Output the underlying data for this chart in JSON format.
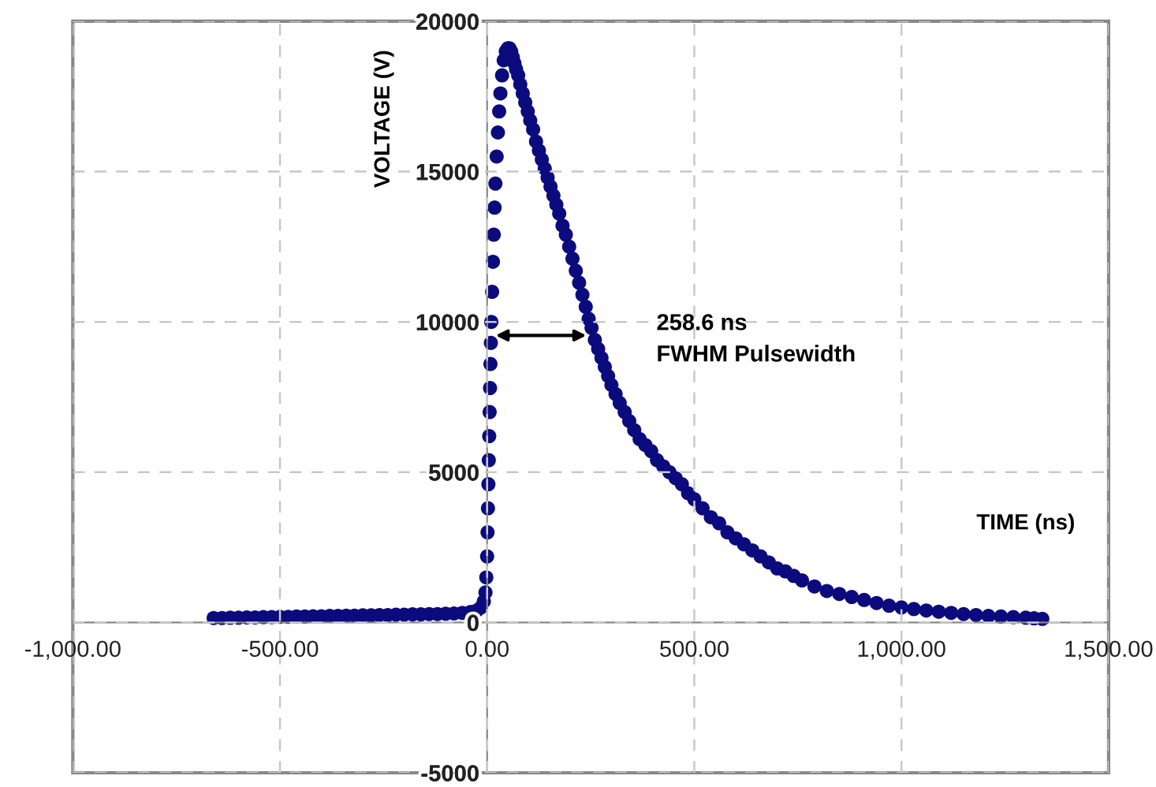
{
  "chart_data": {
    "type": "scatter",
    "xlabel": "TIME (ns)",
    "ylabel": "VOLTAGE (V)",
    "xlim": [
      -1000,
      1500
    ],
    "xticks": [
      {
        "value": -1000,
        "label": "-1,000.00"
      },
      {
        "value": -500,
        "label": "-500.00"
      },
      {
        "value": 0,
        "label": "0.00"
      },
      {
        "value": 500,
        "label": "500.00"
      },
      {
        "value": 1000,
        "label": "1,000.00"
      },
      {
        "value": 1500,
        "label": "1,500.00"
      }
    ],
    "ylim": [
      -5000,
      20000
    ],
    "yticks": [
      -5000,
      0,
      5000,
      10000,
      15000,
      20000
    ],
    "grid": true,
    "marker": "circle",
    "series": [
      {
        "color": "#0b0b7e",
        "x": [
          -660,
          -640,
          -620,
          -600,
          -580,
          -560,
          -540,
          -520,
          -500,
          -480,
          -460,
          -440,
          -420,
          -400,
          -380,
          -360,
          -340,
          -320,
          -300,
          -280,
          -260,
          -240,
          -220,
          -200,
          -180,
          -160,
          -140,
          -120,
          -100,
          -80,
          -60,
          -40,
          -25,
          -15,
          -8,
          -4,
          -2,
          0,
          1,
          2,
          3,
          4,
          5,
          6,
          7,
          8,
          9,
          10,
          12,
          14,
          16,
          18,
          20,
          23,
          26,
          29,
          32,
          36,
          40,
          45,
          50,
          54,
          58,
          62,
          66,
          70,
          75,
          80,
          86,
          92,
          98,
          104,
          111,
          118,
          125,
          132,
          139,
          146,
          153,
          160,
          167,
          174,
          182,
          190,
          198,
          206,
          214,
          222,
          230,
          238,
          245,
          252,
          260,
          268,
          276,
          284,
          292,
          300,
          310,
          320,
          332,
          343,
          355,
          368,
          382,
          396,
          410,
          425,
          440,
          455,
          470,
          485,
          500,
          520,
          540,
          560,
          580,
          600,
          620,
          640,
          660,
          680,
          700,
          720,
          740,
          760,
          790,
          820,
          850,
          880,
          910,
          940,
          970,
          1000,
          1030,
          1060,
          1090,
          1120,
          1150,
          1180,
          1210,
          1240,
          1270,
          1300,
          1320,
          1340
        ],
        "values": [
          150,
          150,
          160,
          160,
          170,
          170,
          180,
          180,
          190,
          190,
          200,
          200,
          210,
          210,
          220,
          220,
          230,
          230,
          240,
          240,
          250,
          250,
          260,
          260,
          270,
          270,
          280,
          280,
          290,
          300,
          320,
          350,
          400,
          500,
          700,
          1000,
          1500,
          2200,
          3000,
          3800,
          4600,
          5400,
          6200,
          7000,
          7800,
          8600,
          9300,
          10000,
          11000,
          12000,
          12900,
          13800,
          14600,
          15500,
          16300,
          17000,
          17600,
          18200,
          18700,
          19000,
          19100,
          19100,
          19000,
          18800,
          18600,
          18400,
          18200,
          17900,
          17600,
          17300,
          17000,
          16700,
          16400,
          16000,
          15700,
          15400,
          15100,
          14800,
          14500,
          14200,
          13900,
          13600,
          13200,
          12900,
          12500,
          12100,
          11700,
          11300,
          10900,
          10500,
          10100,
          9800,
          9400,
          9100,
          8800,
          8500,
          8200,
          7900,
          7600,
          7300,
          7000,
          6700,
          6400,
          6100,
          5900,
          5700,
          5400,
          5200,
          5000,
          4800,
          4600,
          4300,
          4100,
          3800,
          3500,
          3300,
          3000,
          2800,
          2600,
          2400,
          2200,
          2000,
          1800,
          1700,
          1550,
          1400,
          1200,
          1050,
          950,
          850,
          750,
          650,
          560,
          500,
          450,
          400,
          360,
          320,
          280,
          250,
          220,
          200,
          180,
          160,
          140,
          120
        ]
      }
    ],
    "annotations": [
      {
        "text": "258.6 ns\nFWHM Pulsewidth",
        "x": 250,
        "y": 9550
      }
    ]
  }
}
